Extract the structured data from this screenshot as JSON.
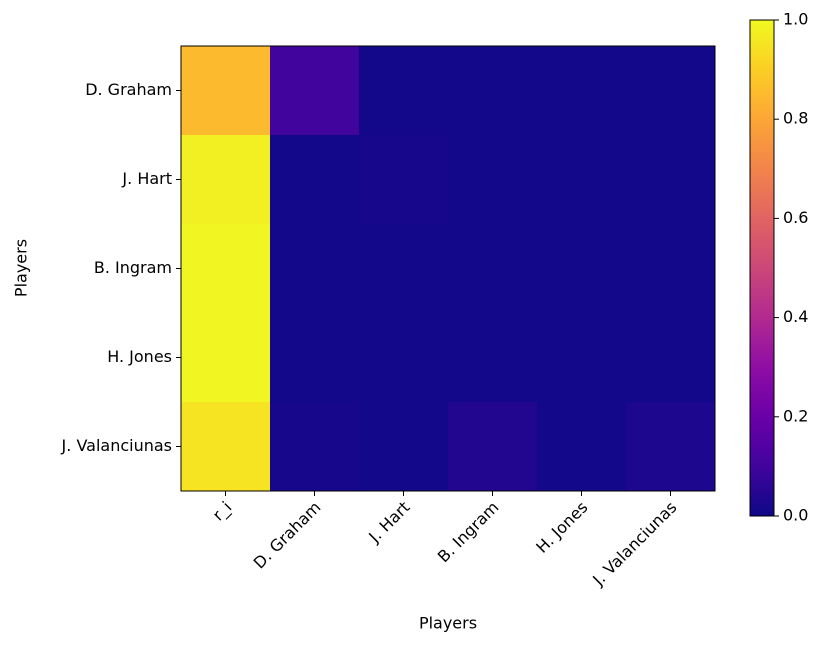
{
  "chart_data": {
    "type": "heatmap",
    "x_categories": [
      "r_i",
      "D. Graham",
      "J. Hart",
      "B. Ingram",
      "H. Jones",
      "J. Valanciunas"
    ],
    "y_categories": [
      "D. Graham",
      "J. Hart",
      "B. Ingram",
      "H. Jones",
      "J. Valanciunas"
    ],
    "values": [
      [
        0.85,
        0.1,
        0.01,
        0.01,
        0.01,
        0.01
      ],
      [
        0.98,
        0.01,
        0.02,
        0.01,
        0.01,
        0.01
      ],
      [
        0.99,
        0.01,
        0.01,
        0.01,
        0.01,
        0.01
      ],
      [
        0.99,
        0.01,
        0.01,
        0.01,
        0.01,
        0.01
      ],
      [
        0.95,
        0.02,
        0.01,
        0.04,
        0.01,
        0.03
      ]
    ],
    "xlabel": "Players",
    "ylabel": "Players",
    "colormap": "plasma",
    "clim": [
      0,
      1
    ],
    "cticks": [
      {
        "value": 0,
        "label": "0.0"
      },
      {
        "value": 0.2,
        "label": "0.2"
      },
      {
        "value": 0.4,
        "label": "0.4"
      },
      {
        "value": 0.6,
        "label": "0.6"
      },
      {
        "value": 0.8,
        "label": "0.8"
      },
      {
        "value": 1,
        "label": "1.0"
      }
    ]
  }
}
